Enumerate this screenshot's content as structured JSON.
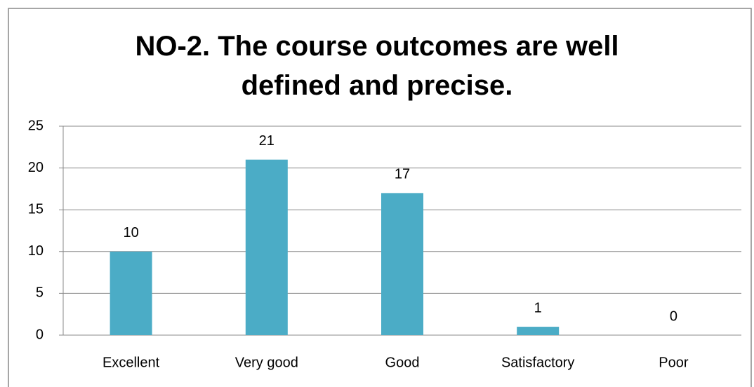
{
  "chart_data": {
    "type": "bar",
    "title": "NO-2. The course outcomes are well defined and precise.",
    "categories": [
      "Excellent",
      "Very good",
      "Good",
      "Satisfactory",
      "Poor"
    ],
    "values": [
      10,
      21,
      17,
      1,
      0
    ],
    "color": "#4bacc6",
    "ylim": [
      0,
      25
    ],
    "yticks": [
      0,
      5,
      10,
      15,
      20,
      25
    ],
    "grid": true
  }
}
